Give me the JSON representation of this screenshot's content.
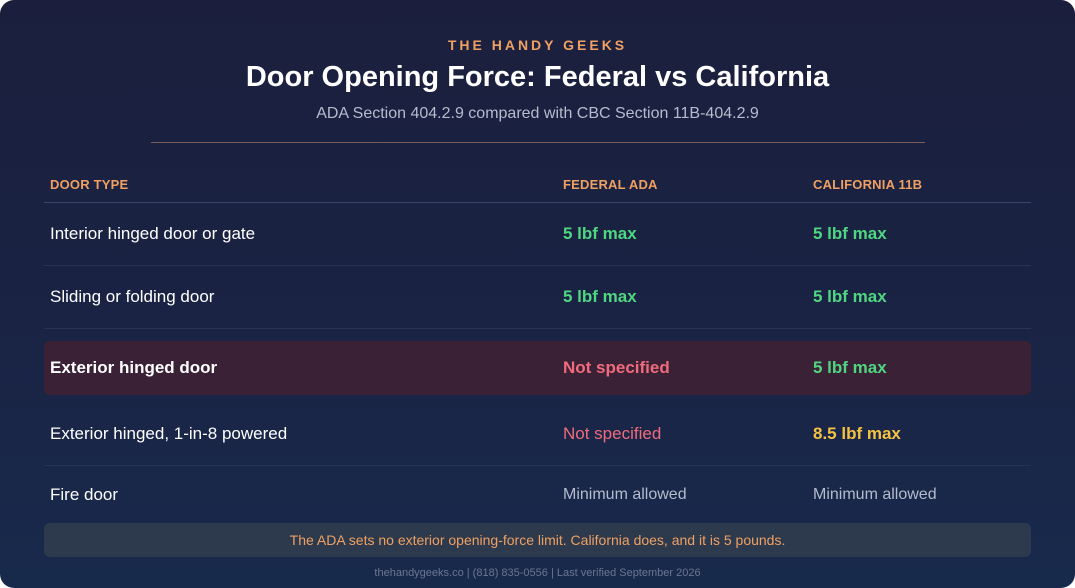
{
  "header": {
    "brand": "THE HANDY GEEKS",
    "title": "Door Opening Force: Federal vs California",
    "subtitle": "ADA Section 404.2.9 compared with CBC Section 11B-404.2.9"
  },
  "table": {
    "columns": [
      "DOOR TYPE",
      "FEDERAL ADA",
      "CALIFORNIA 11B"
    ],
    "rows": [
      {
        "door_type": "Interior hinged door or gate",
        "federal": "5 lbf max",
        "california": "5 lbf max"
      },
      {
        "door_type": "Sliding or folding door",
        "federal": "5 lbf max",
        "california": "5 lbf max"
      },
      {
        "door_type": "Exterior hinged door",
        "federal": "Not specified",
        "california": "5 lbf max",
        "highlighted": true
      },
      {
        "door_type": "Exterior hinged, 1-in-8 powered",
        "federal": "Not specified",
        "california": "8.5 lbf max"
      },
      {
        "door_type": "Fire door",
        "federal": "Minimum allowed",
        "california": "Minimum allowed"
      }
    ]
  },
  "note": "The ADA sets no exterior opening-force limit. California does, and it is 5 pounds.",
  "footer": "thehandygeeks.co | (818) 835-0556 | Last verified September 2026",
  "colors": {
    "accent": "#f0a062",
    "ok": "#4fd680",
    "missing": "#f06b7c",
    "warning": "#f5c242",
    "highlight_row": "#3a2136"
  }
}
